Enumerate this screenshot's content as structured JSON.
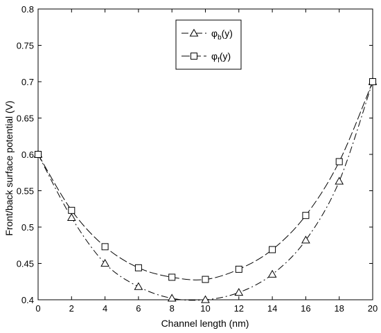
{
  "chart_data": {
    "type": "line",
    "xlabel": "Channel length (nm)",
    "ylabel": "Front/back surface potential (V)",
    "xlim": [
      0,
      20
    ],
    "ylim": [
      0.4,
      0.8
    ],
    "xticks": [
      0,
      2,
      4,
      6,
      8,
      10,
      12,
      14,
      16,
      18,
      20
    ],
    "xtick_labels": [
      "0",
      "2",
      "4",
      "6",
      "8",
      "10",
      "12",
      "14",
      "16",
      "18",
      "20"
    ],
    "yticks": [
      0.4,
      0.45,
      0.5,
      0.55,
      0.6,
      0.65,
      0.7,
      0.75,
      0.8
    ],
    "ytick_labels": [
      "0.4",
      "0.45",
      "0.5",
      "0.55",
      "0.6",
      "0.65",
      "0.7",
      "0.75",
      "0.8"
    ],
    "grid": false,
    "legend_position": "top-center",
    "series": [
      {
        "name": "φb(y)",
        "legend_main": "φ",
        "legend_sub": "b",
        "legend_suffix": "(y)",
        "marker": "triangle",
        "line_style": "dash-dot",
        "color": "#000000",
        "x": [
          0,
          2,
          4,
          6,
          8,
          10,
          12,
          14,
          16,
          18,
          20
        ],
        "y": [
          0.6,
          0.513,
          0.45,
          0.418,
          0.402,
          0.4,
          0.41,
          0.435,
          0.482,
          0.563,
          0.7
        ]
      },
      {
        "name": "φf(y)",
        "legend_main": "φ",
        "legend_sub": "f",
        "legend_suffix": "(y)",
        "marker": "square",
        "line_style": "long-dash",
        "color": "#000000",
        "x": [
          0,
          2,
          4,
          6,
          8,
          10,
          12,
          14,
          16,
          18,
          20
        ],
        "y": [
          0.6,
          0.523,
          0.473,
          0.444,
          0.431,
          0.428,
          0.442,
          0.469,
          0.516,
          0.59,
          0.7
        ]
      }
    ]
  }
}
